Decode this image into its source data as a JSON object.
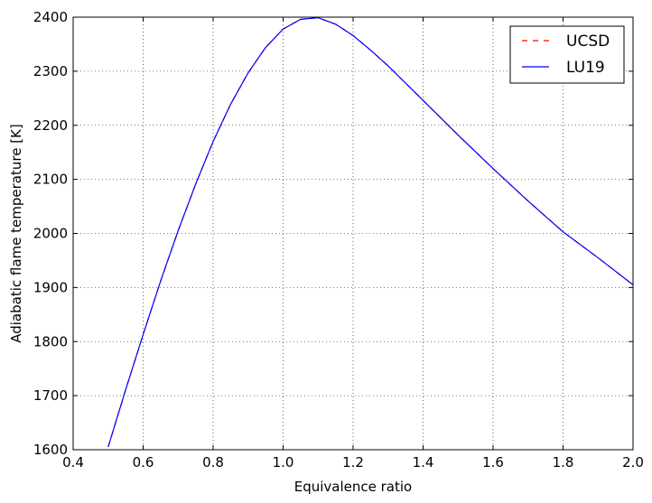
{
  "chart_data": {
    "type": "line",
    "xlabel": "Equivalence ratio",
    "ylabel": "Adiabatic flame temperature [K]",
    "xlim": [
      0.4,
      2.0
    ],
    "ylim": [
      1600,
      2400
    ],
    "xticks": [
      0.4,
      0.6,
      0.8,
      1.0,
      1.2,
      1.4,
      1.6,
      1.8,
      2.0
    ],
    "xtick_labels": [
      "0.4",
      "0.6",
      "0.8",
      "1.0",
      "1.2",
      "1.4",
      "1.6",
      "1.8",
      "2.0"
    ],
    "yticks": [
      1600,
      1700,
      1800,
      1900,
      2000,
      2100,
      2200,
      2300,
      2400
    ],
    "ytick_labels": [
      "1600",
      "1700",
      "1800",
      "1900",
      "2000",
      "2100",
      "2200",
      "2300",
      "2400"
    ],
    "grid": true,
    "legend_position": "top-right",
    "series": [
      {
        "name": "UCSD",
        "color": "#ff0000",
        "style": "dashed",
        "x": [
          0.5,
          0.55,
          0.6,
          0.65,
          0.7,
          0.75,
          0.8,
          0.85,
          0.9,
          0.95,
          1.0,
          1.05,
          1.1,
          1.15,
          1.2,
          1.25,
          1.3,
          1.4,
          1.5,
          1.6,
          1.7,
          1.8,
          1.9,
          2.0
        ],
        "values": [
          1605,
          1711,
          1813,
          1912,
          2005,
          2091,
          2170,
          2239,
          2297,
          2344,
          2378,
          2396,
          2399,
          2387,
          2366,
          2339,
          2310,
          2246,
          2182,
          2120,
          2060,
          2003,
          1955,
          1905
        ]
      },
      {
        "name": "LU19",
        "color": "#0000ff",
        "style": "solid",
        "x": [
          0.5,
          0.55,
          0.6,
          0.65,
          0.7,
          0.75,
          0.8,
          0.85,
          0.9,
          0.95,
          1.0,
          1.05,
          1.1,
          1.15,
          1.2,
          1.25,
          1.3,
          1.4,
          1.5,
          1.6,
          1.7,
          1.8,
          1.9,
          2.0
        ],
        "values": [
          1605,
          1711,
          1813,
          1912,
          2005,
          2091,
          2170,
          2239,
          2297,
          2344,
          2378,
          2396,
          2399,
          2387,
          2366,
          2339,
          2310,
          2246,
          2182,
          2120,
          2060,
          2003,
          1955,
          1905
        ]
      }
    ]
  }
}
